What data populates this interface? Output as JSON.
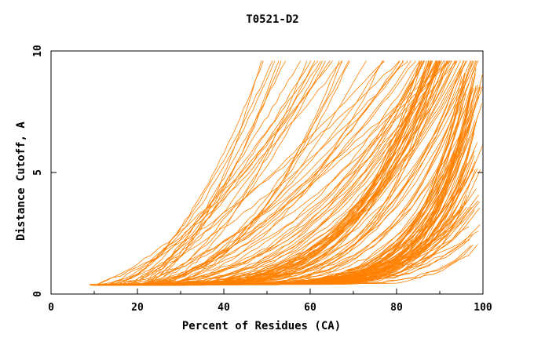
{
  "chart_data": {
    "type": "line",
    "title": "T0521-D2",
    "xlabel": "Percent of Residues (CA)",
    "ylabel": "Distance Cutoff, A",
    "xlim": [
      0,
      100
    ],
    "ylim": [
      0,
      10
    ],
    "x_ticks": [
      0,
      20,
      40,
      60,
      80,
      100
    ],
    "x_tick_labels": [
      "0",
      "20",
      "40",
      "60",
      "80",
      "100"
    ],
    "y_ticks": [
      0,
      5,
      10
    ],
    "y_tick_labels": [
      "0",
      "5",
      "10"
    ],
    "grid": false,
    "legend": "none",
    "line_color": "#ff8000",
    "series_count": 170,
    "series_endpoints": [
      {
        "x_start": 8,
        "x_end": 45
      },
      {
        "x_start": 10,
        "x_end": 47
      },
      {
        "x_start": 12,
        "x_end": 56
      },
      {
        "x_start": 12,
        "x_end": 63
      },
      {
        "x_start": 14,
        "x_end": 66
      },
      {
        "x_start": 14,
        "x_end": 70
      },
      {
        "x_start": 15,
        "x_end": 73
      },
      {
        "x_start": 16,
        "x_end": 75
      },
      {
        "x_start": 16,
        "x_end": 78
      },
      {
        "x_start": 17,
        "x_end": 80
      },
      {
        "x_start": 18,
        "x_end": 85
      },
      {
        "x_start": 18,
        "x_end": 88
      },
      {
        "x_start": 19,
        "x_end": 90
      },
      {
        "x_start": 20,
        "x_end": 92
      },
      {
        "x_start": 20,
        "x_end": 94
      },
      {
        "x_start": 21,
        "x_end": 96
      },
      {
        "x_start": 22,
        "x_end": 98
      },
      {
        "x_start": 22,
        "x_end": 100
      }
    ]
  }
}
